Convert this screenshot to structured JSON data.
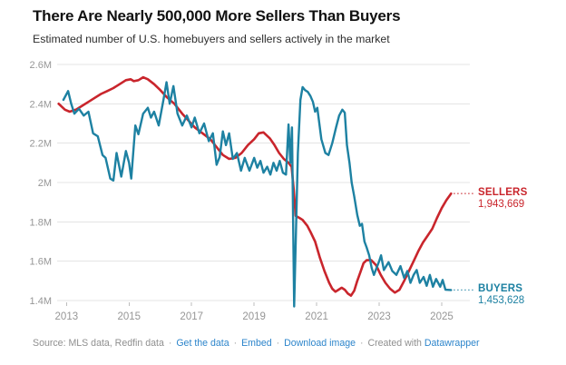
{
  "header": {
    "title": "There Are Nearly 500,000 More Sellers Than Buyers",
    "subtitle": "Estimated number of U.S. homebuyers and sellers actively in the market"
  },
  "footer": {
    "source": "Source: MLS data, Redfin data",
    "separator": "·",
    "links": [
      "Get the data",
      "Embed",
      "Download image"
    ],
    "created_with": "Created with",
    "created_with_link": "Datawrapper"
  },
  "chart_data": {
    "type": "line",
    "title": "There Are Nearly 500,000 More Sellers Than Buyers",
    "subtitle": "Estimated number of U.S. homebuyers and sellers actively in the market",
    "x_range": [
      2012.7,
      2025.9
    ],
    "y_range": [
      1.4,
      2.6
    ],
    "grid": true,
    "legend_position": "end-of-line-labels",
    "y_ticks": [
      {
        "v": 1.4,
        "label": "1.4M"
      },
      {
        "v": 1.6,
        "label": "1.6M"
      },
      {
        "v": 1.8,
        "label": "1.8M"
      },
      {
        "v": 2.0,
        "label": "2M"
      },
      {
        "v": 2.2,
        "label": "2.2M"
      },
      {
        "v": 2.4,
        "label": "2.4M"
      },
      {
        "v": 2.6,
        "label": "2.6M"
      }
    ],
    "x_ticks": [
      {
        "v": 2013,
        "label": "2013"
      },
      {
        "v": 2015,
        "label": "2015"
      },
      {
        "v": 2017,
        "label": "2017"
      },
      {
        "v": 2019,
        "label": "2019"
      },
      {
        "v": 2021,
        "label": "2021"
      },
      {
        "v": 2023,
        "label": "2023"
      },
      {
        "v": 2025,
        "label": "2025"
      }
    ],
    "series": [
      {
        "id": "sellers",
        "name": "Sellers",
        "end_label": "SELLERS",
        "end_value": "1,943,669",
        "color": "#c9252c",
        "width": 2.6,
        "points": [
          [
            2012.75,
            2.4
          ],
          [
            2012.95,
            2.37
          ],
          [
            2013.1,
            2.36
          ],
          [
            2013.3,
            2.37
          ],
          [
            2013.5,
            2.39
          ],
          [
            2013.7,
            2.41
          ],
          [
            2013.9,
            2.43
          ],
          [
            2014.1,
            2.45
          ],
          [
            2014.3,
            2.465
          ],
          [
            2014.5,
            2.48
          ],
          [
            2014.7,
            2.5
          ],
          [
            2014.9,
            2.52
          ],
          [
            2015.05,
            2.525
          ],
          [
            2015.15,
            2.515
          ],
          [
            2015.3,
            2.52
          ],
          [
            2015.45,
            2.535
          ],
          [
            2015.6,
            2.525
          ],
          [
            2015.8,
            2.5
          ],
          [
            2016.0,
            2.47
          ],
          [
            2016.2,
            2.435
          ],
          [
            2016.45,
            2.4
          ],
          [
            2016.7,
            2.35
          ],
          [
            2016.9,
            2.315
          ],
          [
            2017.1,
            2.28
          ],
          [
            2017.35,
            2.25
          ],
          [
            2017.6,
            2.22
          ],
          [
            2017.8,
            2.18
          ],
          [
            2018.0,
            2.14
          ],
          [
            2018.2,
            2.12
          ],
          [
            2018.4,
            2.125
          ],
          [
            2018.6,
            2.15
          ],
          [
            2018.8,
            2.19
          ],
          [
            2019.0,
            2.22
          ],
          [
            2019.15,
            2.25
          ],
          [
            2019.3,
            2.255
          ],
          [
            2019.5,
            2.225
          ],
          [
            2019.65,
            2.19
          ],
          [
            2019.8,
            2.15
          ],
          [
            2019.95,
            2.12
          ],
          [
            2020.1,
            2.1
          ],
          [
            2020.2,
            2.08
          ],
          [
            2020.27,
            1.96
          ],
          [
            2020.33,
            1.83
          ],
          [
            2020.45,
            1.82
          ],
          [
            2020.55,
            1.81
          ],
          [
            2020.7,
            1.78
          ],
          [
            2020.8,
            1.75
          ],
          [
            2020.95,
            1.7
          ],
          [
            2021.1,
            1.62
          ],
          [
            2021.25,
            1.55
          ],
          [
            2021.4,
            1.49
          ],
          [
            2021.5,
            1.46
          ],
          [
            2021.6,
            1.445
          ],
          [
            2021.7,
            1.455
          ],
          [
            2021.8,
            1.465
          ],
          [
            2021.9,
            1.455
          ],
          [
            2022.0,
            1.435
          ],
          [
            2022.1,
            1.425
          ],
          [
            2022.2,
            1.45
          ],
          [
            2022.3,
            1.5
          ],
          [
            2022.4,
            1.545
          ],
          [
            2022.5,
            1.59
          ],
          [
            2022.6,
            1.605
          ],
          [
            2022.75,
            1.605
          ],
          [
            2022.9,
            1.58
          ],
          [
            2023.05,
            1.53
          ],
          [
            2023.2,
            1.49
          ],
          [
            2023.35,
            1.46
          ],
          [
            2023.5,
            1.44
          ],
          [
            2023.65,
            1.455
          ],
          [
            2023.8,
            1.5
          ],
          [
            2023.95,
            1.55
          ],
          [
            2024.1,
            1.6
          ],
          [
            2024.25,
            1.65
          ],
          [
            2024.4,
            1.695
          ],
          [
            2024.55,
            1.73
          ],
          [
            2024.7,
            1.765
          ],
          [
            2024.85,
            1.82
          ],
          [
            2025.0,
            1.87
          ],
          [
            2025.15,
            1.91
          ],
          [
            2025.3,
            1.9437
          ]
        ]
      },
      {
        "id": "buyers",
        "name": "Buyers",
        "end_label": "BUYERS",
        "end_value": "1,453,628",
        "color": "#1d81a2",
        "width": 2.4,
        "points": [
          [
            2012.9,
            2.42
          ],
          [
            2013.05,
            2.465
          ],
          [
            2013.15,
            2.4
          ],
          [
            2013.25,
            2.35
          ],
          [
            2013.4,
            2.375
          ],
          [
            2013.55,
            2.34
          ],
          [
            2013.7,
            2.36
          ],
          [
            2013.85,
            2.25
          ],
          [
            2014.0,
            2.235
          ],
          [
            2014.15,
            2.14
          ],
          [
            2014.25,
            2.125
          ],
          [
            2014.4,
            2.02
          ],
          [
            2014.5,
            2.01
          ],
          [
            2014.6,
            2.15
          ],
          [
            2014.75,
            2.03
          ],
          [
            2014.9,
            2.16
          ],
          [
            2015.0,
            2.1
          ],
          [
            2015.07,
            2.02
          ],
          [
            2015.2,
            2.29
          ],
          [
            2015.3,
            2.245
          ],
          [
            2015.45,
            2.35
          ],
          [
            2015.6,
            2.38
          ],
          [
            2015.7,
            2.33
          ],
          [
            2015.8,
            2.36
          ],
          [
            2015.95,
            2.29
          ],
          [
            2016.1,
            2.42
          ],
          [
            2016.2,
            2.51
          ],
          [
            2016.3,
            2.4
          ],
          [
            2016.42,
            2.49
          ],
          [
            2016.55,
            2.35
          ],
          [
            2016.7,
            2.29
          ],
          [
            2016.85,
            2.34
          ],
          [
            2017.0,
            2.28
          ],
          [
            2017.1,
            2.33
          ],
          [
            2017.25,
            2.25
          ],
          [
            2017.4,
            2.3
          ],
          [
            2017.55,
            2.21
          ],
          [
            2017.68,
            2.25
          ],
          [
            2017.8,
            2.09
          ],
          [
            2017.9,
            2.13
          ],
          [
            2018.0,
            2.26
          ],
          [
            2018.1,
            2.19
          ],
          [
            2018.2,
            2.25
          ],
          [
            2018.32,
            2.12
          ],
          [
            2018.45,
            2.15
          ],
          [
            2018.58,
            2.06
          ],
          [
            2018.7,
            2.125
          ],
          [
            2018.85,
            2.06
          ],
          [
            2019.0,
            2.125
          ],
          [
            2019.1,
            2.075
          ],
          [
            2019.2,
            2.11
          ],
          [
            2019.3,
            2.05
          ],
          [
            2019.42,
            2.08
          ],
          [
            2019.52,
            2.04
          ],
          [
            2019.62,
            2.1
          ],
          [
            2019.72,
            2.06
          ],
          [
            2019.82,
            2.11
          ],
          [
            2019.92,
            2.05
          ],
          [
            2020.02,
            2.04
          ],
          [
            2020.1,
            2.295
          ],
          [
            2020.16,
            2.1
          ],
          [
            2020.21,
            2.28
          ],
          [
            2020.28,
            1.37
          ],
          [
            2020.4,
            2.15
          ],
          [
            2020.48,
            2.42
          ],
          [
            2020.55,
            2.485
          ],
          [
            2020.63,
            2.47
          ],
          [
            2020.72,
            2.46
          ],
          [
            2020.8,
            2.44
          ],
          [
            2020.88,
            2.41
          ],
          [
            2020.95,
            2.36
          ],
          [
            2021.02,
            2.38
          ],
          [
            2021.15,
            2.22
          ],
          [
            2021.28,
            2.15
          ],
          [
            2021.38,
            2.14
          ],
          [
            2021.5,
            2.2
          ],
          [
            2021.62,
            2.28
          ],
          [
            2021.72,
            2.34
          ],
          [
            2021.82,
            2.37
          ],
          [
            2021.9,
            2.355
          ],
          [
            2021.97,
            2.19
          ],
          [
            2022.05,
            2.1
          ],
          [
            2022.12,
            2.0
          ],
          [
            2022.2,
            1.93
          ],
          [
            2022.3,
            1.835
          ],
          [
            2022.38,
            1.78
          ],
          [
            2022.45,
            1.79
          ],
          [
            2022.53,
            1.7
          ],
          [
            2022.6,
            1.67
          ],
          [
            2022.68,
            1.63
          ],
          [
            2022.76,
            1.565
          ],
          [
            2022.83,
            1.53
          ],
          [
            2023.0,
            1.6
          ],
          [
            2023.06,
            1.63
          ],
          [
            2023.15,
            1.555
          ],
          [
            2023.3,
            1.595
          ],
          [
            2023.42,
            1.55
          ],
          [
            2023.55,
            1.53
          ],
          [
            2023.68,
            1.575
          ],
          [
            2023.8,
            1.515
          ],
          [
            2023.9,
            1.55
          ],
          [
            2024.0,
            1.49
          ],
          [
            2024.1,
            1.53
          ],
          [
            2024.2,
            1.555
          ],
          [
            2024.3,
            1.49
          ],
          [
            2024.42,
            1.52
          ],
          [
            2024.52,
            1.475
          ],
          [
            2024.62,
            1.53
          ],
          [
            2024.72,
            1.47
          ],
          [
            2024.82,
            1.51
          ],
          [
            2024.95,
            1.47
          ],
          [
            2025.03,
            1.505
          ],
          [
            2025.12,
            1.455
          ],
          [
            2025.3,
            1.4536
          ]
        ]
      }
    ]
  }
}
